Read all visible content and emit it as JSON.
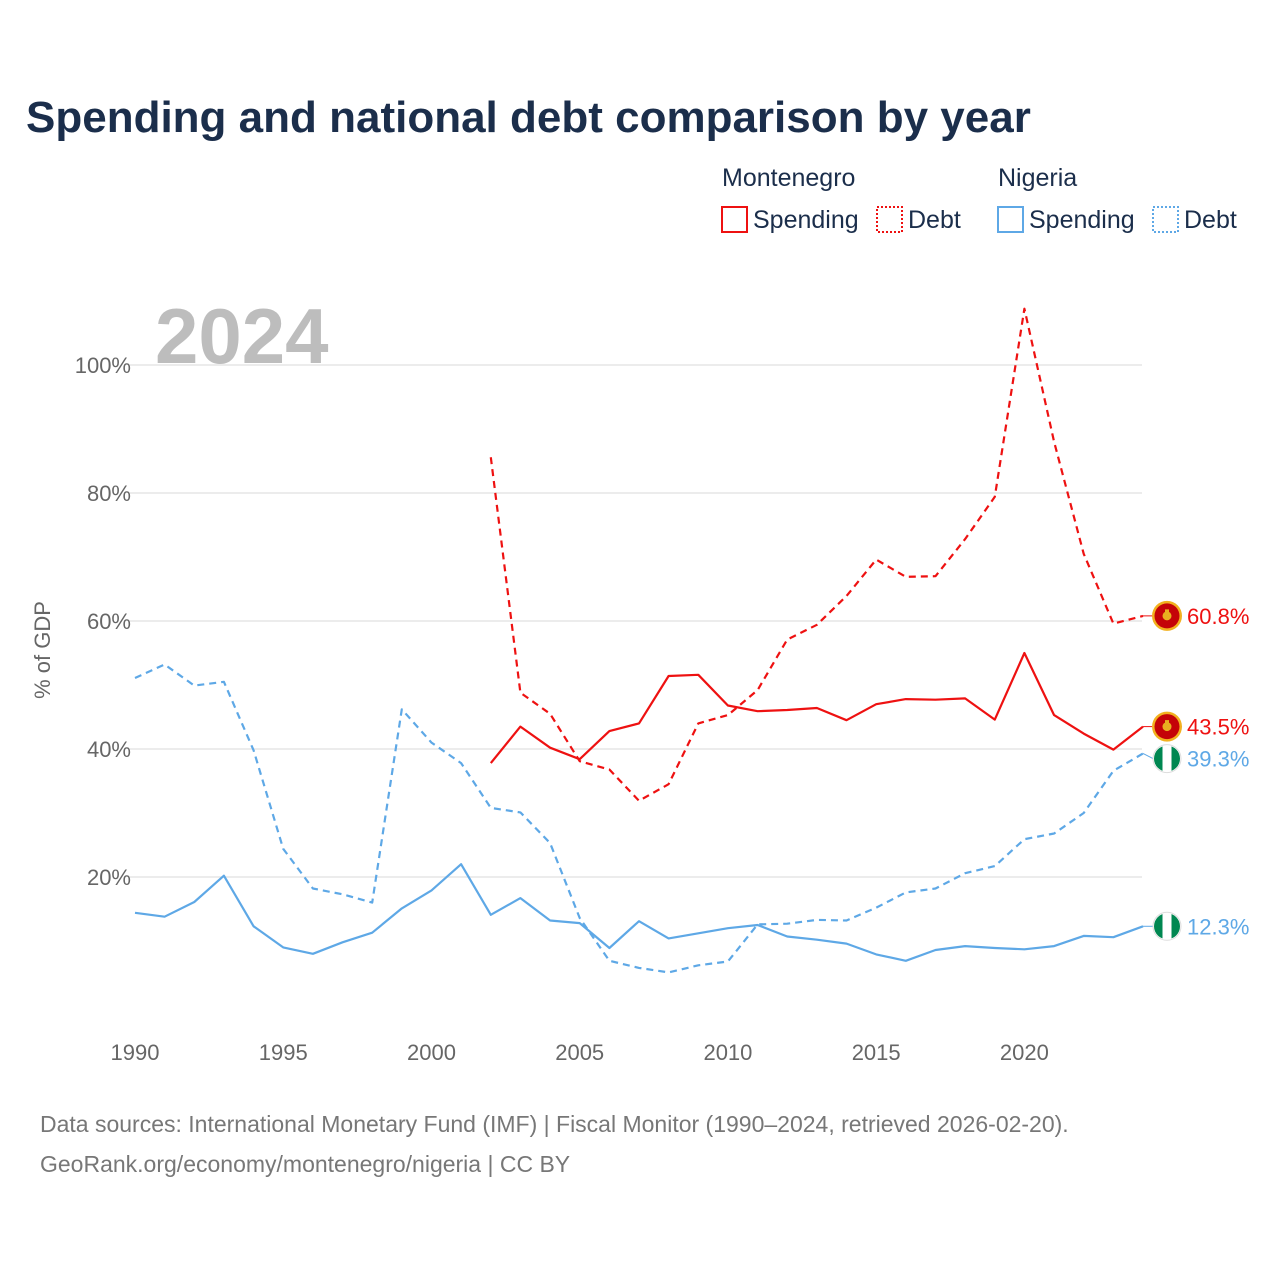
{
  "title": "Spending and national debt comparison by year",
  "year_label": "2024",
  "colors": {
    "montenegro": "#ee1111",
    "nigeria": "#5ea8e6",
    "text": "#1b2e4b",
    "muted": "#666666"
  },
  "legend": {
    "groups": [
      {
        "name": "Montenegro",
        "color_key": "montenegro",
        "items": [
          {
            "label": "Spending",
            "style": "solid"
          },
          {
            "label": "Debt",
            "style": "dashed"
          }
        ]
      },
      {
        "name": "Nigeria",
        "color_key": "nigeria",
        "items": [
          {
            "label": "Spending",
            "style": "solid"
          },
          {
            "label": "Debt",
            "style": "dashed"
          }
        ]
      }
    ]
  },
  "source_lines": [
    "Data sources: International Monetary Fund (IMF) | Fiscal Monitor (1990–2024, retrieved 2026-02-20).",
    "GeoRank.org/economy/montenegro/nigeria | CC BY"
  ],
  "chart_data": {
    "type": "line",
    "title": "Spending and national debt comparison by year",
    "xlabel": "",
    "ylabel": "% of GDP",
    "xlim": [
      1990,
      2024
    ],
    "ylim": [
      0,
      110
    ],
    "x_ticks": [
      1990,
      1995,
      2000,
      2005,
      2010,
      2015,
      2020
    ],
    "y_ticks": [
      20,
      40,
      60,
      80,
      100
    ],
    "y_tick_labels": [
      "20%",
      "40%",
      "60%",
      "80%",
      "100%"
    ],
    "grid": true,
    "series": [
      {
        "name": "Montenegro Spending",
        "country": "Montenegro",
        "measure": "Spending",
        "color_key": "montenegro",
        "style": "solid",
        "end_label": "43.5%",
        "flag": "montenegro-flag-icon",
        "points": [
          [
            2002,
            37.8
          ],
          [
            2003,
            43.5
          ],
          [
            2004,
            40.2
          ],
          [
            2005,
            38.4
          ],
          [
            2006,
            42.8
          ],
          [
            2007,
            44.0
          ],
          [
            2008,
            51.4
          ],
          [
            2009,
            51.6
          ],
          [
            2010,
            46.8
          ],
          [
            2011,
            45.9
          ],
          [
            2012,
            46.1
          ],
          [
            2013,
            46.4
          ],
          [
            2014,
            44.5
          ],
          [
            2015,
            47.0
          ],
          [
            2016,
            47.8
          ],
          [
            2017,
            47.7
          ],
          [
            2018,
            47.9
          ],
          [
            2019,
            44.6
          ],
          [
            2020,
            55.0
          ],
          [
            2021,
            45.3
          ],
          [
            2022,
            42.4
          ],
          [
            2023,
            39.9
          ],
          [
            2024,
            43.5
          ]
        ]
      },
      {
        "name": "Montenegro Debt",
        "country": "Montenegro",
        "measure": "Debt",
        "color_key": "montenegro",
        "style": "dashed",
        "end_label": "60.8%",
        "flag": "montenegro-flag-icon",
        "points": [
          [
            2002,
            85.6
          ],
          [
            2003,
            48.8
          ],
          [
            2004,
            45.5
          ],
          [
            2005,
            38.1
          ],
          [
            2006,
            36.8
          ],
          [
            2007,
            31.9
          ],
          [
            2008,
            34.5
          ],
          [
            2009,
            44.0
          ],
          [
            2010,
            45.3
          ],
          [
            2011,
            49.2
          ],
          [
            2012,
            57.1
          ],
          [
            2013,
            59.4
          ],
          [
            2014,
            63.9
          ],
          [
            2015,
            69.6
          ],
          [
            2016,
            66.9
          ],
          [
            2017,
            67.0
          ],
          [
            2018,
            72.8
          ],
          [
            2019,
            79.4
          ],
          [
            2020,
            108.8
          ],
          [
            2021,
            88.0
          ],
          [
            2022,
            70.5
          ],
          [
            2023,
            59.6
          ],
          [
            2024,
            60.8
          ]
        ]
      },
      {
        "name": "Nigeria Spending",
        "country": "Nigeria",
        "measure": "Spending",
        "color_key": "nigeria",
        "style": "solid",
        "end_label": "12.3%",
        "flag": "nigeria-flag-icon",
        "points": [
          [
            1990,
            14.4
          ],
          [
            1991,
            13.8
          ],
          [
            1992,
            16.1
          ],
          [
            1993,
            20.2
          ],
          [
            1994,
            12.3
          ],
          [
            1995,
            9.0
          ],
          [
            1996,
            8.0
          ],
          [
            1997,
            9.8
          ],
          [
            1998,
            11.3
          ],
          [
            1999,
            15.1
          ],
          [
            2000,
            17.9
          ],
          [
            2001,
            22.0
          ],
          [
            2002,
            14.1
          ],
          [
            2003,
            16.7
          ],
          [
            2004,
            13.2
          ],
          [
            2005,
            12.8
          ],
          [
            2006,
            8.9
          ],
          [
            2007,
            13.1
          ],
          [
            2008,
            10.4
          ],
          [
            2009,
            11.2
          ],
          [
            2010,
            12.0
          ],
          [
            2011,
            12.5
          ],
          [
            2012,
            10.7
          ],
          [
            2013,
            10.2
          ],
          [
            2014,
            9.6
          ],
          [
            2015,
            7.9
          ],
          [
            2016,
            6.9
          ],
          [
            2017,
            8.6
          ],
          [
            2018,
            9.2
          ],
          [
            2019,
            8.9
          ],
          [
            2020,
            8.7
          ],
          [
            2021,
            9.2
          ],
          [
            2022,
            10.8
          ],
          [
            2023,
            10.6
          ],
          [
            2024,
            12.3
          ]
        ]
      },
      {
        "name": "Nigeria Debt",
        "country": "Nigeria",
        "measure": "Debt",
        "color_key": "nigeria",
        "style": "dashed",
        "end_label": "39.3%",
        "flag": "nigeria-flag-icon",
        "points": [
          [
            1990,
            51.1
          ],
          [
            1991,
            53.2
          ],
          [
            1992,
            49.9
          ],
          [
            1993,
            50.5
          ],
          [
            1994,
            39.8
          ],
          [
            1995,
            24.4
          ],
          [
            1996,
            18.2
          ],
          [
            1997,
            17.3
          ],
          [
            1998,
            16.0
          ],
          [
            1999,
            46.2
          ],
          [
            2000,
            41.0
          ],
          [
            2001,
            37.8
          ],
          [
            2002,
            30.8
          ],
          [
            2003,
            30.1
          ],
          [
            2004,
            25.3
          ],
          [
            2005,
            13.6
          ],
          [
            2006,
            6.9
          ],
          [
            2007,
            5.8
          ],
          [
            2008,
            5.1
          ],
          [
            2009,
            6.2
          ],
          [
            2010,
            6.8
          ],
          [
            2011,
            12.6
          ],
          [
            2012,
            12.7
          ],
          [
            2013,
            13.3
          ],
          [
            2014,
            13.2
          ],
          [
            2015,
            15.2
          ],
          [
            2016,
            17.6
          ],
          [
            2017,
            18.2
          ],
          [
            2018,
            20.6
          ],
          [
            2019,
            21.7
          ],
          [
            2020,
            25.9
          ],
          [
            2021,
            26.8
          ],
          [
            2022,
            30.0
          ],
          [
            2023,
            36.6
          ],
          [
            2024,
            39.3
          ]
        ]
      }
    ]
  }
}
